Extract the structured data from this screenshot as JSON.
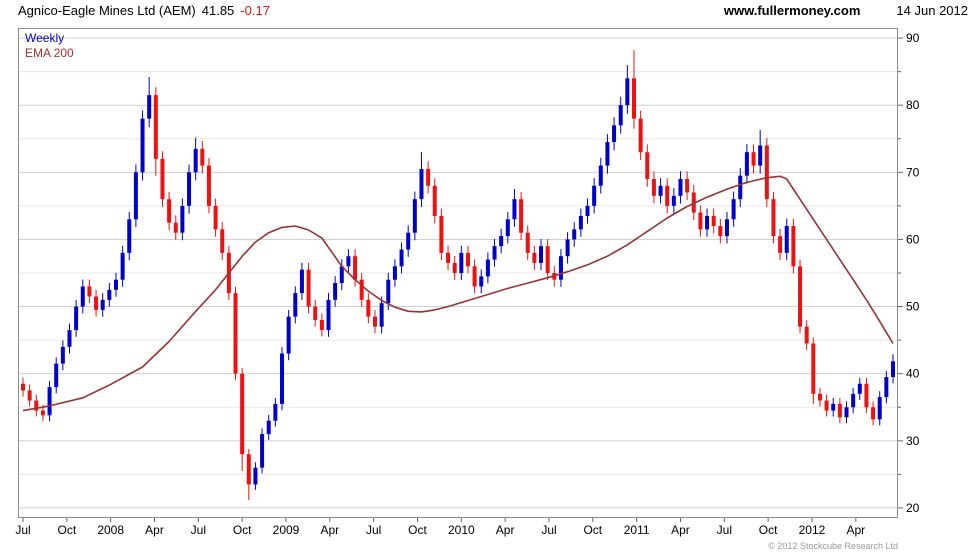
{
  "header": {
    "title": "Agnico-Eagle Mines Ltd (AEM)",
    "price": "41.85",
    "change": "-0.17",
    "site": "www.fullermoney.com",
    "date": "14 Jun 2012"
  },
  "legend": {
    "timeframe": "Weekly",
    "overlay": "EMA 200"
  },
  "footer": {
    "copyright": "© 2012 Stockcube Research Ltd"
  },
  "colors": {
    "up_candle": "#0000cc",
    "down_candle": "#ee1111",
    "ema_line": "#993333",
    "weekly_label": "#0000cc",
    "change_text": "#ee1111",
    "grid_major": "#d0d0d0",
    "grid_minor": "#e7e7e7",
    "plot_border": "#8c8c8c",
    "axis_text": "#000000",
    "tick_mark": "#666666",
    "copyright_text": "#999999"
  },
  "chart_data": {
    "type": "candlestick",
    "title": "Agnico-Eagle Mines Ltd (AEM) weekly candlesticks with 200-period EMA",
    "timeframe": "Weekly",
    "overlay": "EMA 200",
    "last_price": 41.85,
    "change": -0.17,
    "x_tick_labels": [
      "Jul",
      "Oct",
      "2008",
      "Apr",
      "Jul",
      "Oct",
      "2009",
      "Apr",
      "Jul",
      "Oct",
      "2010",
      "Apr",
      "Jul",
      "Oct",
      "2011",
      "Apr",
      "Jul",
      "Oct",
      "2012",
      "Apr"
    ],
    "x_ticks_per_candle_index": 6.6,
    "y_tick_labels": [
      90,
      80,
      70,
      60,
      50,
      40,
      30,
      20
    ],
    "y_minor_ticks": [
      85,
      75,
      65,
      55,
      45,
      35,
      25
    ],
    "ylim": [
      18.5,
      91.5
    ],
    "first_open": 38.5,
    "wick_base": 0.6,
    "wick_pct": 0.008,
    "closes": [
      37.5,
      36.0,
      34.5,
      33.8,
      38.0,
      41.5,
      44.0,
      46.5,
      50.0,
      53.0,
      51.5,
      49.5,
      51.0,
      52.5,
      54.0,
      58.0,
      63.0,
      70.0,
      78.0,
      81.5,
      72.0,
      66.0,
      62.5,
      61.0,
      65.0,
      70.0,
      73.5,
      71.0,
      65.0,
      61.5,
      58.0,
      52.0,
      40.0,
      28.0,
      23.5,
      26.0,
      31.0,
      33.0,
      35.5,
      43.0,
      48.5,
      52.0,
      55.5,
      50.0,
      48.0,
      46.5,
      51.0,
      53.5,
      56.0,
      57.5,
      54.0,
      51.0,
      48.5,
      47.0,
      50.5,
      54.0,
      56.0,
      58.5,
      61.0,
      66.0,
      70.5,
      68.0,
      63.5,
      58.0,
      56.5,
      55.0,
      58.0,
      56.0,
      53.0,
      54.5,
      57.0,
      59.0,
      60.5,
      63.0,
      66.0,
      61.0,
      58.0,
      56.5,
      59.0,
      55.0,
      54.0,
      57.5,
      60.0,
      61.5,
      63.5,
      65.0,
      68.0,
      71.0,
      74.5,
      77.0,
      80.0,
      84.0,
      78.0,
      73.0,
      69.0,
      66.5,
      68.0,
      65.0,
      66.5,
      69.0,
      67.0,
      64.0,
      61.5,
      63.5,
      62.0,
      60.5,
      63.0,
      66.0,
      69.5,
      73.0,
      71.0,
      74.0,
      66.0,
      60.5,
      58.0,
      62.0,
      56.0,
      47.0,
      44.5,
      37.0,
      36.0,
      34.5,
      35.5,
      33.5,
      35.0,
      37.0,
      38.5,
      35.0,
      33.2,
      36.5,
      39.5,
      41.85
    ],
    "overrides": {
      "19": {
        "high": 84.2
      },
      "20": {
        "low": 69.5
      },
      "26": {
        "high": 75.2
      },
      "33": {
        "low": 25.5
      },
      "34": {
        "low": 21.2
      },
      "60": {
        "high": 73.0
      },
      "74": {
        "high": 67.5
      },
      "91": {
        "high": 86.0
      },
      "92": {
        "high": 88.2,
        "low": 76.5
      },
      "111": {
        "high": 76.3
      },
      "119": {
        "low": 35.5
      },
      "123": {
        "low": 32.6
      },
      "128": {
        "low": 32.3
      },
      "131": {
        "high": 42.9
      }
    },
    "ema_points": [
      [
        0,
        34.5
      ],
      [
        4,
        35.2
      ],
      [
        9,
        36.4
      ],
      [
        13,
        38.3
      ],
      [
        18,
        41.0
      ],
      [
        22,
        44.8
      ],
      [
        26,
        49.3
      ],
      [
        29,
        52.5
      ],
      [
        31,
        55.0
      ],
      [
        33,
        57.5
      ],
      [
        35,
        59.6
      ],
      [
        37,
        61.0
      ],
      [
        39,
        61.8
      ],
      [
        41,
        62.0
      ],
      [
        43,
        61.4
      ],
      [
        45,
        60.2
      ],
      [
        48,
        56.0
      ],
      [
        50,
        54.0
      ],
      [
        52,
        52.3
      ],
      [
        54,
        50.9
      ],
      [
        56,
        49.9
      ],
      [
        58,
        49.3
      ],
      [
        60,
        49.2
      ],
      [
        62,
        49.5
      ],
      [
        64,
        50.0
      ],
      [
        67,
        50.9
      ],
      [
        70,
        51.8
      ],
      [
        73,
        52.7
      ],
      [
        76,
        53.5
      ],
      [
        79,
        54.3
      ],
      [
        82,
        55.2
      ],
      [
        85,
        56.2
      ],
      [
        88,
        57.5
      ],
      [
        91,
        59.2
      ],
      [
        94,
        61.2
      ],
      [
        97,
        63.2
      ],
      [
        100,
        64.9
      ],
      [
        103,
        66.3
      ],
      [
        106,
        67.5
      ],
      [
        109,
        68.5
      ],
      [
        112,
        69.2
      ],
      [
        114,
        69.4
      ],
      [
        115,
        69.0
      ],
      [
        117,
        66.0
      ],
      [
        119,
        63.0
      ],
      [
        121,
        60.0
      ],
      [
        123,
        57.0
      ],
      [
        125,
        54.0
      ],
      [
        127,
        51.0
      ],
      [
        129,
        47.8
      ],
      [
        131,
        44.5
      ]
    ]
  }
}
